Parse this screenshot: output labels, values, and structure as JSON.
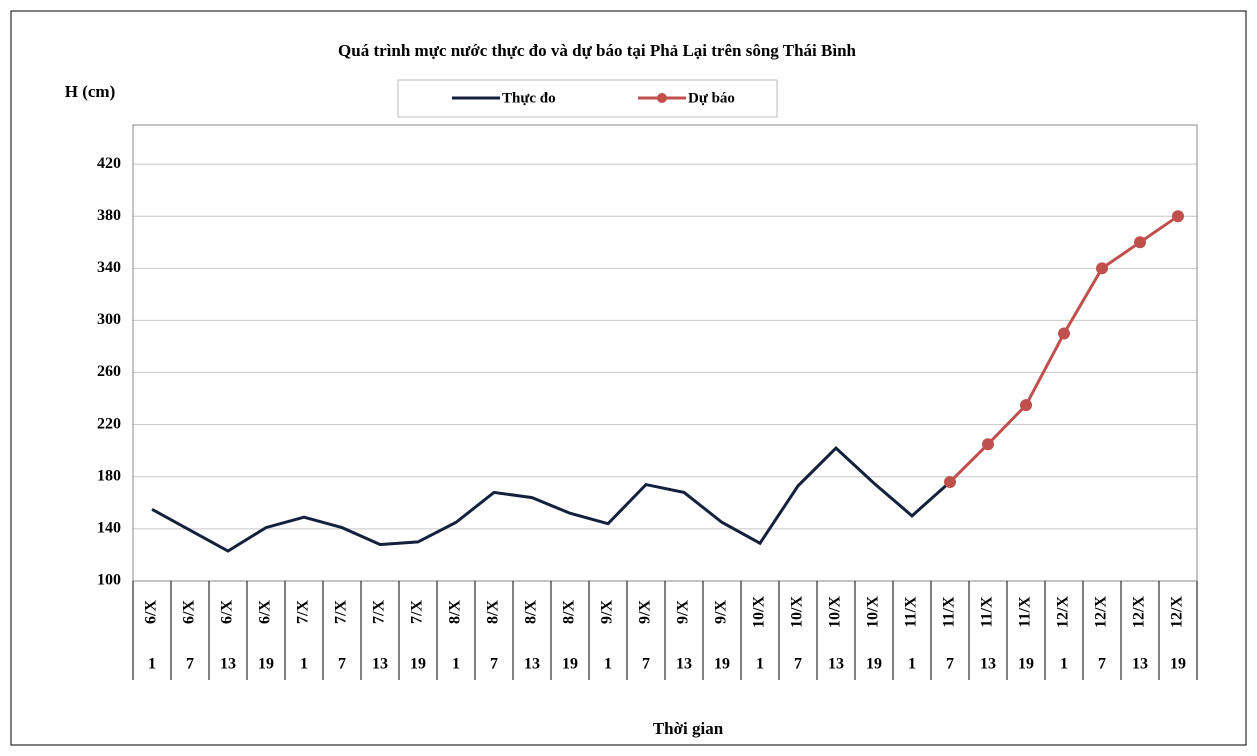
{
  "chart_data": {
    "type": "line",
    "title": "Quá trình mực nước thực đo và dự báo tại Phả Lại trên sông Thái Bình",
    "y_label": "H (cm)",
    "x_label": "Thời gian",
    "categories": [
      "6/X",
      "6/X",
      "6/X",
      "6/X",
      "7/X",
      "7/X",
      "7/X",
      "7/X",
      "8/X",
      "8/X",
      "8/X",
      "8/X",
      "9/X",
      "9/X",
      "9/X",
      "9/X",
      "10/X",
      "10/X",
      "10/X",
      "10/X",
      "11/X",
      "11/X",
      "11/X",
      "11/X",
      "12/X",
      "12/X",
      "12/X",
      "12/X"
    ],
    "sub_categories": [
      "1",
      "7",
      "13",
      "19",
      "1",
      "7",
      "13",
      "19",
      "1",
      "7",
      "13",
      "19",
      "1",
      "7",
      "13",
      "19",
      "1",
      "7",
      "13",
      "19",
      "1",
      "7",
      "13",
      "19",
      "1",
      "7",
      "13",
      "19"
    ],
    "series": [
      {
        "name": "Thực đo",
        "color": "#14213d",
        "markers": false,
        "values": [
          155,
          139,
          123,
          141,
          149,
          141,
          128,
          130,
          145,
          168,
          164,
          152,
          144,
          174,
          168,
          145,
          129,
          173,
          202,
          175,
          150,
          176,
          null,
          null,
          null,
          null,
          null,
          null
        ]
      },
      {
        "name": "Dự báo",
        "color": "#c0504d",
        "markers": true,
        "values": [
          null,
          null,
          null,
          null,
          null,
          null,
          null,
          null,
          null,
          null,
          null,
          null,
          null,
          null,
          null,
          null,
          null,
          null,
          null,
          null,
          null,
          176,
          205,
          235,
          290,
          340,
          360,
          380
        ]
      }
    ],
    "ylim": [
      100,
      450
    ],
    "yticks": [
      100,
      140,
      180,
      220,
      260,
      300,
      340,
      380,
      420
    ],
    "grid": true
  }
}
